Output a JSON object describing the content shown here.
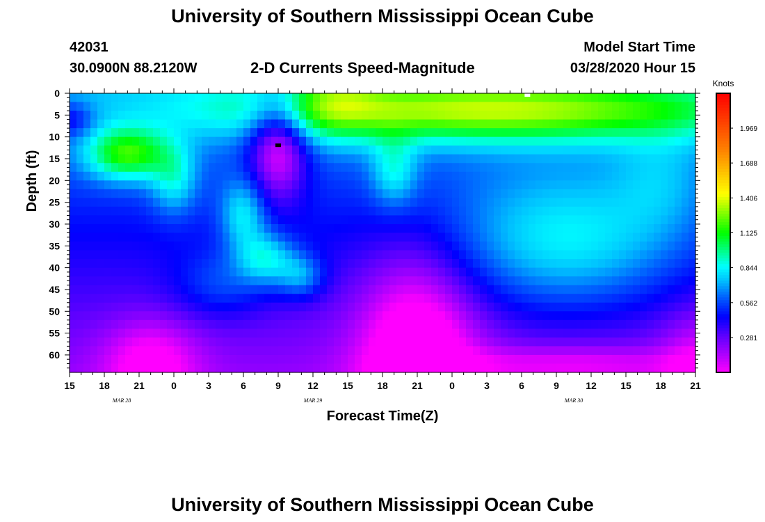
{
  "header": {
    "title_top": "University of Southern Mississippi Ocean Cube",
    "station_id": "42031",
    "station_coords": "30.0900N 88.2120W",
    "plot_subtitle": "2-D Currents Speed-Magnitude",
    "model_start_label": "Model Start Time",
    "model_start_value": "03/28/2020 Hour 15",
    "title_bottom": "University of Southern Mississippi Ocean Cube"
  },
  "chart_data": {
    "type": "heatmap",
    "xlabel": "Forecast Time(Z)",
    "ylabel": "Depth (ft)",
    "x_tick_labels": [
      "15",
      "18",
      "21",
      "0",
      "3",
      "6",
      "9",
      "12",
      "15",
      "18",
      "21",
      "0",
      "3",
      "6",
      "9",
      "12",
      "15",
      "18",
      "21"
    ],
    "date_labels": [
      {
        "text": "MAR 28",
        "at_tick": 1.5
      },
      {
        "text": "MAR 29",
        "at_tick": 7
      },
      {
        "text": "MAR 30",
        "at_tick": 14.5
      }
    ],
    "y_ticks": [
      0,
      5,
      10,
      15,
      20,
      25,
      30,
      35,
      40,
      45,
      50,
      55,
      60
    ],
    "ylim": [
      0,
      64
    ],
    "x_range_hours": [
      0,
      54
    ],
    "colorbar": {
      "title": "Knots",
      "tick_values": [
        "0.281",
        "0.562",
        "0.844",
        "1.125",
        "1.406",
        "1.688",
        "1.969"
      ],
      "range": [
        0,
        2.25
      ],
      "stops": [
        {
          "v": 0.0,
          "c": "#ff00ff"
        },
        {
          "v": 0.05,
          "c": "#c000ff"
        },
        {
          "v": 0.13,
          "c": "#6000ff"
        },
        {
          "v": 0.2,
          "c": "#0000ff"
        },
        {
          "v": 0.27,
          "c": "#0060ff"
        },
        {
          "v": 0.33,
          "c": "#00c0ff"
        },
        {
          "v": 0.38,
          "c": "#00ffff"
        },
        {
          "v": 0.44,
          "c": "#00ff80"
        },
        {
          "v": 0.5,
          "c": "#00ff00"
        },
        {
          "v": 0.57,
          "c": "#80ff00"
        },
        {
          "v": 0.64,
          "c": "#ffff00"
        },
        {
          "v": 0.72,
          "c": "#ffc000"
        },
        {
          "v": 0.8,
          "c": "#ff8000"
        },
        {
          "v": 0.9,
          "c": "#ff4000"
        },
        {
          "v": 1.0,
          "c": "#ff0000"
        }
      ]
    },
    "features_knots": [
      {
        "h": 5,
        "d": 14,
        "sx": 3.5,
        "sy": 6,
        "a": 0.6
      },
      {
        "h": 9,
        "d": 20,
        "sx": 2,
        "sy": 8,
        "a": 0.3
      },
      {
        "h": 15,
        "d": 28,
        "sx": 2,
        "sy": 8,
        "a": 0.35
      },
      {
        "h": 17,
        "d": 38,
        "sx": 2.5,
        "sy": 6,
        "a": 0.4
      },
      {
        "h": 20,
        "d": 42,
        "sx": 2,
        "sy": 5,
        "a": 0.3
      },
      {
        "h": 13,
        "d": 44,
        "sx": 4,
        "sy": 8,
        "a": 0.2
      },
      {
        "h": 23,
        "d": 0,
        "sx": 4,
        "sy": 10,
        "a": 0.25
      },
      {
        "h": 28,
        "d": 18,
        "sx": 2,
        "sy": 8,
        "a": 0.3
      },
      {
        "h": 43,
        "d": 35,
        "sx": 10,
        "sy": 16,
        "a": 0.4
      },
      {
        "h": 36,
        "d": 4,
        "sx": 22,
        "sy": 7,
        "a": 0.7
      },
      {
        "h": 51,
        "d": 20,
        "sx": 4,
        "sy": 12,
        "a": 0.15
      },
      {
        "h": 0,
        "d": 6,
        "sx": 2,
        "sy": 4,
        "a": -0.25
      },
      {
        "h": 18,
        "d": 12,
        "sx": 2.5,
        "sy": 12,
        "a": -0.55
      },
      {
        "h": 7,
        "d": 62,
        "sx": 4,
        "sy": 10,
        "a": -0.3
      },
      {
        "h": 30,
        "d": 58,
        "sx": 5,
        "sy": 22,
        "a": -0.45
      },
      {
        "h": 43,
        "d": 62,
        "sx": 12,
        "sy": 4,
        "a": -0.2
      },
      {
        "h": 54,
        "d": 62,
        "sx": 3,
        "sy": 12,
        "a": -0.2
      }
    ],
    "base_speed": 0.7,
    "depth_decay": 0.5,
    "markers": [
      {
        "name": "black-marker",
        "h": 18,
        "d": 12,
        "color": "#000000"
      },
      {
        "name": "white-marker",
        "h": 39.5,
        "d": 0,
        "color": "#ffffff"
      }
    ]
  }
}
